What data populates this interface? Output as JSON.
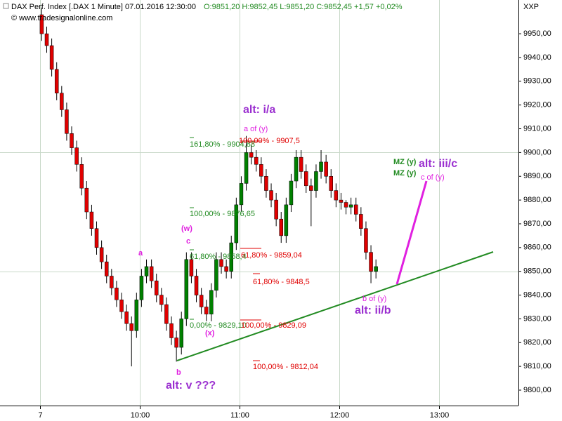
{
  "chart_data": {
    "type": "candlestick",
    "title": "DAX Perf. Index [.DAX  1 Minute] 07.01.2016 12:30:00",
    "subtitle": "O:9851,20 H:9852,45 L:9851,20 C:9852,45 +1,57 +0,02%",
    "source": "© www.tradesignalonline.com",
    "corner_label": "XXP",
    "up_color": "#008000",
    "down_color": "#e00000",
    "x": [
      541,
      544,
      547,
      550,
      553,
      556,
      559,
      562,
      565,
      568,
      571,
      574,
      577,
      580,
      583,
      586,
      589,
      592,
      595,
      598,
      601,
      604,
      607,
      610,
      613,
      616,
      619,
      622,
      625,
      628,
      631,
      634,
      637,
      640,
      643,
      646,
      649,
      652,
      655,
      658,
      661,
      664,
      667,
      670,
      673,
      676,
      679,
      682,
      685,
      688,
      691,
      694,
      697,
      700,
      703,
      706,
      709,
      712,
      715,
      718,
      721,
      724,
      727,
      730,
      733,
      736,
      739,
      742
    ],
    "open": [
      9958,
      9950,
      9945,
      9935,
      9925,
      9918,
      9908,
      9902,
      9895,
      9885,
      9875,
      9868,
      9860,
      9854,
      9848,
      9843,
      9838,
      9833,
      9828,
      9825,
      9838,
      9848,
      9852,
      9846,
      9840,
      9836,
      9828,
      9822,
      9818,
      9830,
      9855,
      9848,
      9840,
      9835,
      9832,
      9842,
      9855,
      9852,
      9850,
      9862,
      9878,
      9887,
      9900,
      9898,
      9895,
      9890,
      9884,
      9880,
      9872,
      9865,
      9878,
      9888,
      9898,
      9892,
      9886,
      9884,
      9892,
      9896,
      9890,
      9884,
      9880,
      9879,
      9877,
      9878,
      9874,
      9868,
      9858,
      9850
    ],
    "high": [
      9961,
      9953,
      9948,
      9938,
      9928,
      9921,
      9911,
      9905,
      9898,
      9888,
      9878,
      9871,
      9863,
      9857,
      9851,
      9846,
      9841,
      9836,
      9831,
      9841,
      9851,
      9855,
      9855,
      9849,
      9843,
      9839,
      9831,
      9825,
      9833,
      9858,
      9858,
      9851,
      9843,
      9838,
      9845,
      9858,
      9858,
      9855,
      9865,
      9881,
      9890,
      9907,
      9903,
      9901,
      9898,
      9893,
      9887,
      9883,
      9875,
      9881,
      9891,
      9901,
      9901,
      9895,
      9889,
      9895,
      9901,
      9899,
      9893,
      9887,
      9883,
      9880,
      9881,
      9881,
      9877,
      9871,
      9861,
      9855
    ],
    "low": [
      9947,
      9942,
      9932,
      9922,
      9915,
      9905,
      9899,
      9892,
      9882,
      9872,
      9865,
      9857,
      9851,
      9845,
      9840,
      9835,
      9830,
      9825,
      9810,
      9822,
      9835,
      9845,
      9843,
      9837,
      9833,
      9825,
      9819,
      9812,
      9815,
      9827,
      9845,
      9837,
      9832,
      9829,
      9829,
      9839,
      9849,
      9847,
      9847,
      9859,
      9875,
      9884,
      9895,
      9892,
      9887,
      9881,
      9877,
      9869,
      9862,
      9862,
      9875,
      9885,
      9889,
      9883,
      9869,
      9881,
      9889,
      9887,
      9881,
      9877,
      9876,
      9874,
      9874,
      9871,
      9865,
      9855,
      9845,
      9847
    ],
    "close": [
      9950,
      9945,
      9935,
      9925,
      9918,
      9908,
      9902,
      9895,
      9885,
      9875,
      9868,
      9860,
      9854,
      9848,
      9843,
      9838,
      9833,
      9828,
      9825,
      9838,
      9848,
      9852,
      9846,
      9840,
      9836,
      9828,
      9822,
      9818,
      9830,
      9855,
      9848,
      9840,
      9835,
      9832,
      9842,
      9855,
      9852,
      9850,
      9862,
      9878,
      9887,
      9900,
      9898,
      9895,
      9890,
      9884,
      9880,
      9872,
      9865,
      9878,
      9888,
      9898,
      9892,
      9886,
      9884,
      9892,
      9896,
      9890,
      9884,
      9880,
      9879,
      9877,
      9878,
      9874,
      9868,
      9858,
      9850,
      9852
    ],
    "xlim": [
      515.9,
      827.7
    ],
    "xticks": [
      {
        "value": 540,
        "label": "7"
      },
      {
        "value": 600,
        "label": "10:00"
      },
      {
        "value": 660,
        "label": "11:00"
      },
      {
        "value": 720,
        "label": "12:00"
      },
      {
        "value": 780,
        "label": "13:00"
      }
    ],
    "ylim": [
      9793.5,
      9964.2
    ],
    "yticks": [
      {
        "value": 9800,
        "label": "9800,00"
      },
      {
        "value": 9810,
        "label": "9810,00"
      },
      {
        "value": 9820,
        "label": "9820,00"
      },
      {
        "value": 9830,
        "label": "9830,00"
      },
      {
        "value": 9840,
        "label": "9840,00"
      },
      {
        "value": 9850,
        "label": "9850,00"
      },
      {
        "value": 9860,
        "label": "9860,00"
      },
      {
        "value": 9870,
        "label": "9870,00"
      },
      {
        "value": 9880,
        "label": "9880,00"
      },
      {
        "value": 9890,
        "label": "9890,00"
      },
      {
        "value": 9900,
        "label": "9900,00"
      },
      {
        "value": 9910,
        "label": "9910,00"
      },
      {
        "value": 9920,
        "label": "9920,00"
      },
      {
        "value": 9930,
        "label": "9930,00"
      },
      {
        "value": 9940,
        "label": "9940,00"
      },
      {
        "value": 9950,
        "label": "9950,00"
      }
    ],
    "ygrid": [
      9850,
      9900
    ],
    "annotations": [
      {
        "text": "alt: i/a",
        "color": "#9b30d0"
      },
      {
        "text": "a of (y)",
        "color": "#e020e0"
      },
      {
        "text": "161,80% - 9904,88",
        "color": "#228b22"
      },
      {
        "text": "100,00% - 9907,5",
        "color": "#e00000"
      },
      {
        "text": "100,00% - 9876,65",
        "color": "#228b22"
      },
      {
        "text": "61,80% - 9858,4",
        "color": "#228b22"
      },
      {
        "text": "61,80% - 9859,04",
        "color": "#e00000"
      },
      {
        "text": "61,80% - 9848,5",
        "color": "#e00000"
      },
      {
        "text": "0,00% - 9829,10",
        "color": "#228b22"
      },
      {
        "text": "100,00% - 9829,09",
        "color": "#e00000"
      },
      {
        "text": "100,00% - 9812,04",
        "color": "#e00000"
      },
      {
        "text": "(w)",
        "color": "#e020e0"
      },
      {
        "text": "c",
        "color": "#e020e0"
      },
      {
        "text": "a",
        "color": "#e020e0"
      },
      {
        "text": "b",
        "color": "#e020e0"
      },
      {
        "text": "(x)",
        "color": "#e020e0"
      },
      {
        "text": "alt: v ???",
        "color": "#9b30d0"
      },
      {
        "text": "b of (y)",
        "color": "#e020e0"
      },
      {
        "text": "alt: ii/b",
        "color": "#9b30d0"
      },
      {
        "text": "MZ (y)",
        "color": "#228b22"
      },
      {
        "text": "MZ (y)",
        "color": "#228b22"
      },
      {
        "text": "alt: iii/c",
        "color": "#9b30d0"
      },
      {
        "text": "c of (y)",
        "color": "#e020e0"
      }
    ]
  }
}
